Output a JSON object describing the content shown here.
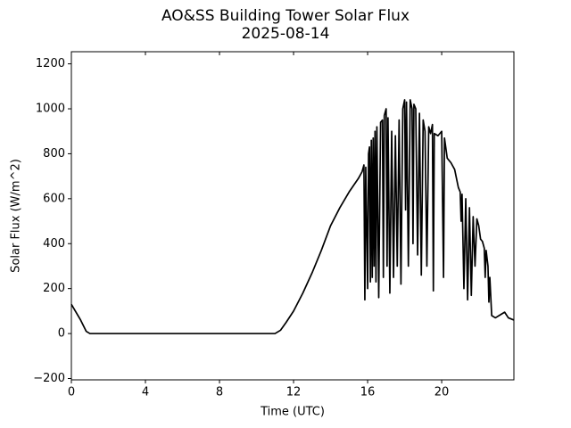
{
  "chart_data": {
    "type": "line",
    "title": "AO&SS Building Tower Solar Flux",
    "subtitle": "2025-08-14",
    "x_label": "Time (UTC)",
    "y_label": "Solar Flux (W/m^2)",
    "xlim": [
      0,
      23.9
    ],
    "xticks": [
      0,
      4,
      8,
      12,
      16,
      20
    ],
    "ylim": [
      -206,
      1254
    ],
    "yticks": [
      {
        "value": -200,
        "label": "−200"
      },
      0,
      200,
      400,
      600,
      800,
      1000,
      1200
    ],
    "series": [
      {
        "name": "Solar Flux",
        "color": "#000000",
        "x": [
          0,
          0.5,
          0.8,
          1.0,
          11.0,
          11.3,
          11.6,
          12,
          12.5,
          13,
          13.5,
          14,
          14.5,
          15,
          15.5,
          15.7,
          15.8,
          15.85,
          15.9,
          16.0,
          16.05,
          16.1,
          16.15,
          16.2,
          16.25,
          16.3,
          16.35,
          16.4,
          16.45,
          16.5,
          16.6,
          16.7,
          16.8,
          16.85,
          16.9,
          17.0,
          17.05,
          17.1,
          17.2,
          17.3,
          17.4,
          17.5,
          17.6,
          17.7,
          17.8,
          17.9,
          18.0,
          18.05,
          18.1,
          18.2,
          18.3,
          18.4,
          18.45,
          18.5,
          18.6,
          18.7,
          18.8,
          18.9,
          19.0,
          19.1,
          19.2,
          19.3,
          19.4,
          19.5,
          19.55,
          19.6,
          19.8,
          20.0,
          20.1,
          20.15,
          20.3,
          20.5,
          20.7,
          20.8,
          20.9,
          21.0,
          21.05,
          21.1,
          21.2,
          21.3,
          21.4,
          21.5,
          21.6,
          21.7,
          21.8,
          21.9,
          22.0,
          22.1,
          22.2,
          22.3,
          22.35,
          22.4,
          22.5,
          22.55,
          22.6,
          22.7,
          22.9,
          23.2,
          23.4,
          23.6,
          23.9
        ],
        "values": [
          130,
          60,
          10,
          0,
          0,
          15,
          50,
          100,
          180,
          270,
          370,
          480,
          560,
          630,
          690,
          720,
          750,
          150,
          740,
          200,
          800,
          830,
          230,
          860,
          250,
          870,
          300,
          900,
          230,
          920,
          160,
          940,
          950,
          250,
          970,
          1000,
          300,
          960,
          180,
          900,
          250,
          880,
          300,
          950,
          220,
          1000,
          1040,
          550,
          1030,
          300,
          1040,
          1000,
          400,
          1020,
          1000,
          350,
          980,
          260,
          950,
          900,
          300,
          920,
          890,
          930,
          190,
          890,
          880,
          900,
          250,
          870,
          780,
          760,
          730,
          690,
          650,
          630,
          500,
          620,
          200,
          600,
          150,
          560,
          170,
          520,
          300,
          510,
          480,
          420,
          410,
          380,
          250,
          370,
          300,
          140,
          250,
          80,
          70,
          85,
          95,
          70,
          60
        ]
      }
    ]
  }
}
